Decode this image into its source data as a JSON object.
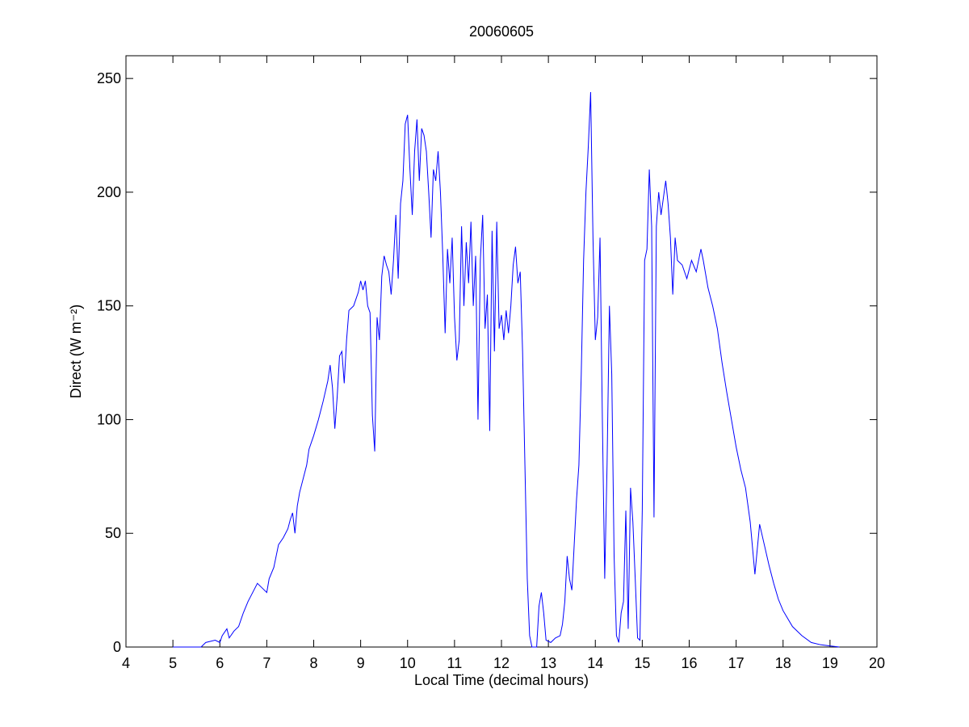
{
  "chart_data": {
    "type": "line",
    "title": "20060605",
    "xlabel": "Local Time (decimal hours)",
    "ylabel": "Direct (W m⁻²)",
    "xlim": [
      4,
      20
    ],
    "xticks": [
      4,
      5,
      6,
      7,
      8,
      9,
      10,
      11,
      12,
      13,
      14,
      15,
      16,
      17,
      18,
      19,
      20
    ],
    "ylim": [
      0,
      260
    ],
    "yticks": [
      0,
      50,
      100,
      150,
      200,
      250
    ],
    "grid": false,
    "x": [
      5.0,
      5.6,
      5.7,
      5.9,
      6.0,
      6.05,
      6.15,
      6.2,
      6.3,
      6.4,
      6.5,
      6.6,
      6.7,
      6.8,
      6.9,
      7.0,
      7.05,
      7.15,
      7.25,
      7.35,
      7.45,
      7.5,
      7.55,
      7.6,
      7.65,
      7.7,
      7.8,
      7.85,
      7.9,
      8.0,
      8.1,
      8.2,
      8.3,
      8.35,
      8.4,
      8.45,
      8.5,
      8.55,
      8.6,
      8.65,
      8.7,
      8.75,
      8.85,
      8.95,
      9.0,
      9.05,
      9.1,
      9.15,
      9.2,
      9.25,
      9.3,
      9.35,
      9.4,
      9.45,
      9.5,
      9.55,
      9.6,
      9.65,
      9.7,
      9.75,
      9.8,
      9.85,
      9.9,
      9.95,
      10.0,
      10.05,
      10.1,
      10.15,
      10.2,
      10.25,
      10.3,
      10.35,
      10.4,
      10.45,
      10.5,
      10.55,
      10.6,
      10.65,
      10.7,
      10.75,
      10.8,
      10.85,
      10.9,
      10.95,
      11.0,
      11.05,
      11.1,
      11.15,
      11.2,
      11.25,
      11.3,
      11.35,
      11.4,
      11.45,
      11.5,
      11.55,
      11.6,
      11.65,
      11.7,
      11.75,
      11.8,
      11.85,
      11.9,
      11.95,
      12.0,
      12.05,
      12.1,
      12.15,
      12.2,
      12.25,
      12.3,
      12.35,
      12.4,
      12.45,
      12.5,
      12.55,
      12.6,
      12.65,
      12.75,
      12.8,
      12.85,
      12.9,
      12.95,
      13.05,
      13.15,
      13.25,
      13.3,
      13.35,
      13.4,
      13.45,
      13.5,
      13.55,
      13.6,
      13.65,
      13.7,
      13.75,
      13.8,
      13.85,
      13.9,
      13.95,
      14.0,
      14.05,
      14.1,
      14.15,
      14.2,
      14.25,
      14.3,
      14.35,
      14.4,
      14.45,
      14.5,
      14.55,
      14.6,
      14.65,
      14.7,
      14.75,
      14.8,
      14.85,
      14.9,
      14.95,
      15.0,
      15.05,
      15.1,
      15.15,
      15.2,
      15.25,
      15.3,
      15.35,
      15.4,
      15.5,
      15.55,
      15.6,
      15.65,
      15.7,
      15.75,
      15.85,
      15.95,
      16.05,
      16.15,
      16.25,
      16.3,
      16.4,
      16.5,
      16.6,
      16.7,
      16.8,
      16.9,
      17.0,
      17.1,
      17.2,
      17.3,
      17.4,
      17.5,
      17.6,
      17.7,
      17.8,
      17.9,
      18.0,
      18.2,
      18.4,
      18.6,
      18.8,
      19.0,
      19.2
    ],
    "series": [
      {
        "color": "#0000ff",
        "values": [
          0,
          0,
          2,
          3,
          2,
          5,
          8,
          4,
          7,
          9,
          15,
          20,
          24,
          28,
          26,
          24,
          30,
          35,
          45,
          48,
          52,
          56,
          59,
          50,
          62,
          68,
          76,
          80,
          87,
          93,
          100,
          108,
          117,
          124,
          114,
          96,
          110,
          128,
          130,
          116,
          135,
          148,
          150,
          156,
          161,
          157,
          161,
          150,
          147,
          102,
          86,
          145,
          135,
          163,
          172,
          168,
          165,
          155,
          170,
          190,
          162,
          195,
          205,
          230,
          234,
          210,
          190,
          218,
          232,
          205,
          228,
          225,
          218,
          200,
          180,
          210,
          205,
          218,
          200,
          172,
          138,
          175,
          160,
          180,
          145,
          126,
          135,
          185,
          150,
          178,
          160,
          187,
          150,
          172,
          100,
          170,
          190,
          140,
          155,
          95,
          183,
          130,
          187,
          140,
          146,
          135,
          148,
          138,
          150,
          168,
          176,
          160,
          165,
          130,
          80,
          30,
          5,
          0,
          0,
          18,
          24,
          15,
          3,
          2,
          4,
          5,
          10,
          20,
          40,
          30,
          25,
          45,
          65,
          80,
          120,
          170,
          200,
          220,
          244,
          180,
          135,
          145,
          180,
          100,
          30,
          80,
          150,
          120,
          40,
          5,
          2,
          15,
          20,
          60,
          8,
          70,
          55,
          30,
          4,
          3,
          60,
          170,
          175,
          210,
          185,
          57,
          185,
          200,
          190,
          205,
          195,
          180,
          155,
          180,
          170,
          168,
          162,
          170,
          165,
          175,
          170,
          158,
          150,
          140,
          125,
          112,
          100,
          88,
          78,
          70,
          55,
          32,
          54,
          45,
          36,
          28,
          21,
          16,
          9,
          5,
          2,
          1,
          0.5,
          0
        ]
      }
    ]
  }
}
